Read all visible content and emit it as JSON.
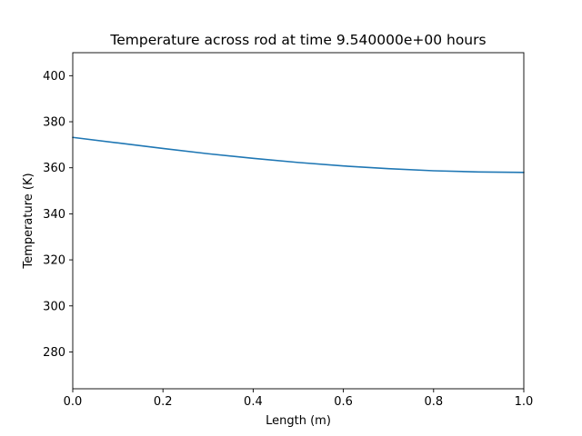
{
  "chart_data": {
    "type": "line",
    "title": "Temperature across rod at time 9.540000e+00 hours",
    "xlabel": "Length (m)",
    "ylabel": "Temperature (K)",
    "xlim": [
      0.0,
      1.0
    ],
    "ylim": [
      264,
      410
    ],
    "grid": false,
    "legend": "none",
    "x_ticks": [
      0.0,
      0.2,
      0.4,
      0.6,
      0.8,
      1.0
    ],
    "x_tick_labels": [
      "0.0",
      "0.2",
      "0.4",
      "0.6",
      "0.8",
      "1.0"
    ],
    "y_ticks": [
      280,
      300,
      320,
      340,
      360,
      380,
      400
    ],
    "y_tick_labels": [
      "280",
      "300",
      "320",
      "340",
      "360",
      "380",
      "400"
    ],
    "line_color": "#1f77b4",
    "series": [
      {
        "x": [
          0.0,
          0.1,
          0.2,
          0.3,
          0.4,
          0.5,
          0.6,
          0.7,
          0.8,
          0.9,
          1.0
        ],
        "values": [
          373.2,
          370.8,
          368.4,
          366.1,
          364.1,
          362.3,
          360.8,
          359.6,
          358.7,
          358.2,
          358.0
        ]
      }
    ]
  }
}
